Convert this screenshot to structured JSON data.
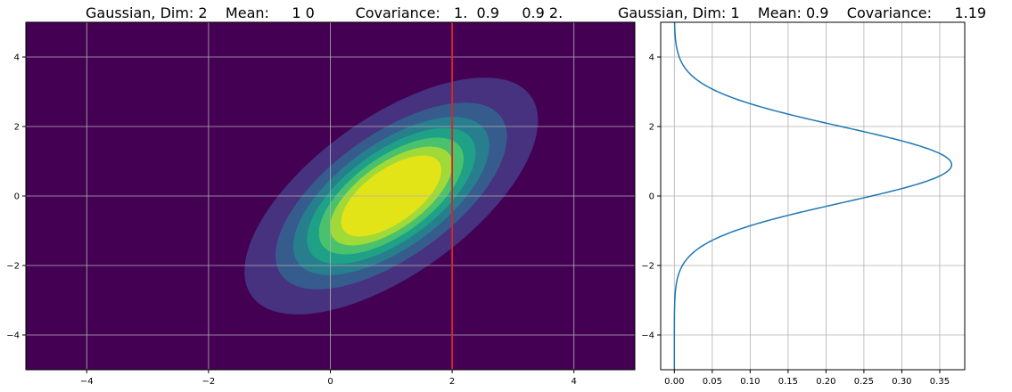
{
  "chart_data": [
    {
      "type": "contour",
      "title": "Gaussian, Dim: 2    Mean:     1 0         Covariance:   1.  0.9     0.9 2.",
      "xlabel": "",
      "ylabel": "",
      "xlim": [
        -5,
        5
      ],
      "ylim": [
        -5,
        5
      ],
      "xticks": [
        -4,
        -2,
        0,
        2,
        4
      ],
      "yticks": [
        -4,
        -2,
        0,
        2,
        4
      ],
      "xtick_labels": [
        "−4",
        "−2",
        "0",
        "2",
        "4"
      ],
      "ytick_labels": [
        "−4",
        "−2",
        "0",
        "2",
        "4"
      ],
      "grid": true,
      "mean": [
        1,
        0
      ],
      "covariance": [
        [
          1.0,
          0.9
        ],
        [
          0.9,
          2.0
        ]
      ],
      "contour_levels": [
        0.008,
        0.024,
        0.04,
        0.056,
        0.072,
        0.088,
        0.104
      ],
      "colormap": [
        "#440154",
        "#46327e",
        "#365c8d",
        "#277f8e",
        "#1fa187",
        "#4ac16d",
        "#a0da39",
        "#e3e418"
      ],
      "vline": {
        "x": 2,
        "color": "#d62728"
      }
    },
    {
      "type": "line",
      "title": "Gaussian, Dim: 1    Mean: 0.9    Covariance:     1.19",
      "xlabel": "",
      "ylabel": "",
      "xlim": [
        -0.018,
        0.383
      ],
      "ylim": [
        -5,
        5
      ],
      "xticks": [
        0.0,
        0.05,
        0.1,
        0.15,
        0.2,
        0.25,
        0.3,
        0.35
      ],
      "xtick_labels": [
        "0.00",
        "0.05",
        "0.10",
        "0.15",
        "0.20",
        "0.25",
        "0.30",
        "0.35"
      ],
      "yticks": [
        -4,
        -2,
        0,
        2,
        4
      ],
      "ytick_labels": [
        "−4",
        "−2",
        "0",
        "2",
        "4"
      ],
      "grid": true,
      "mean": 0.9,
      "variance": 1.19,
      "line_color": "#1f77b4"
    }
  ]
}
